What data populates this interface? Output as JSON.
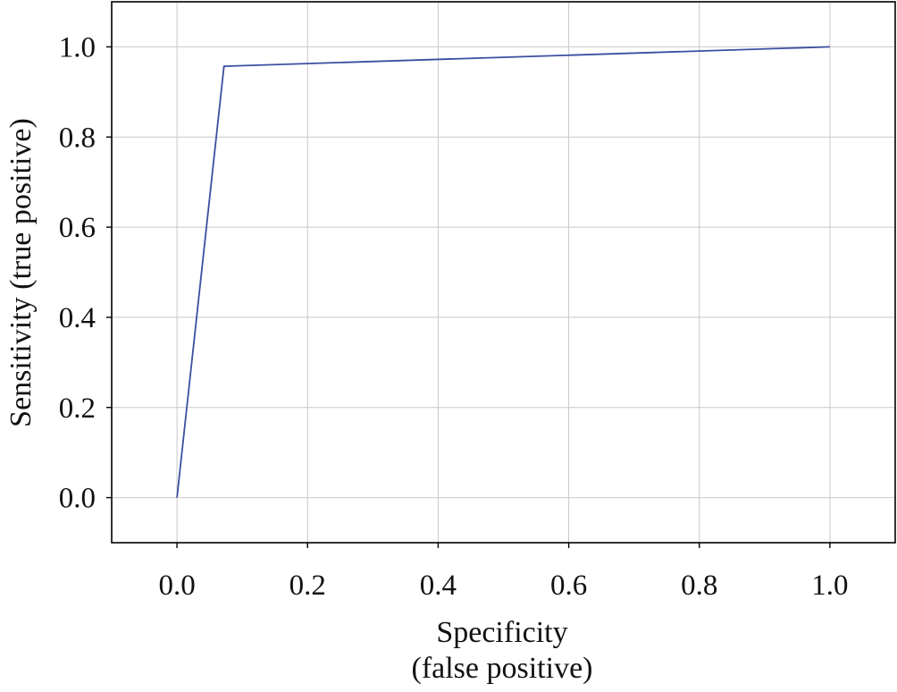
{
  "chart_data": {
    "type": "line",
    "xlabel": [
      "Specificity",
      "(false positive)"
    ],
    "ylabel": "Sensitivity (true positive)",
    "xlim": [
      -0.1,
      1.1
    ],
    "ylim": [
      -0.1,
      1.1
    ],
    "x_ticks": [
      "0.0",
      "0.2",
      "0.4",
      "0.6",
      "0.8",
      "1.0"
    ],
    "y_ticks": [
      "0.0",
      "0.2",
      "0.4",
      "0.6",
      "0.8",
      "1.0"
    ],
    "grid": true,
    "series": [
      {
        "color": "#3a4fa0",
        "x": [
          0.0,
          0.072,
          1.0
        ],
        "y": [
          0.0,
          0.957,
          1.0
        ]
      }
    ]
  }
}
